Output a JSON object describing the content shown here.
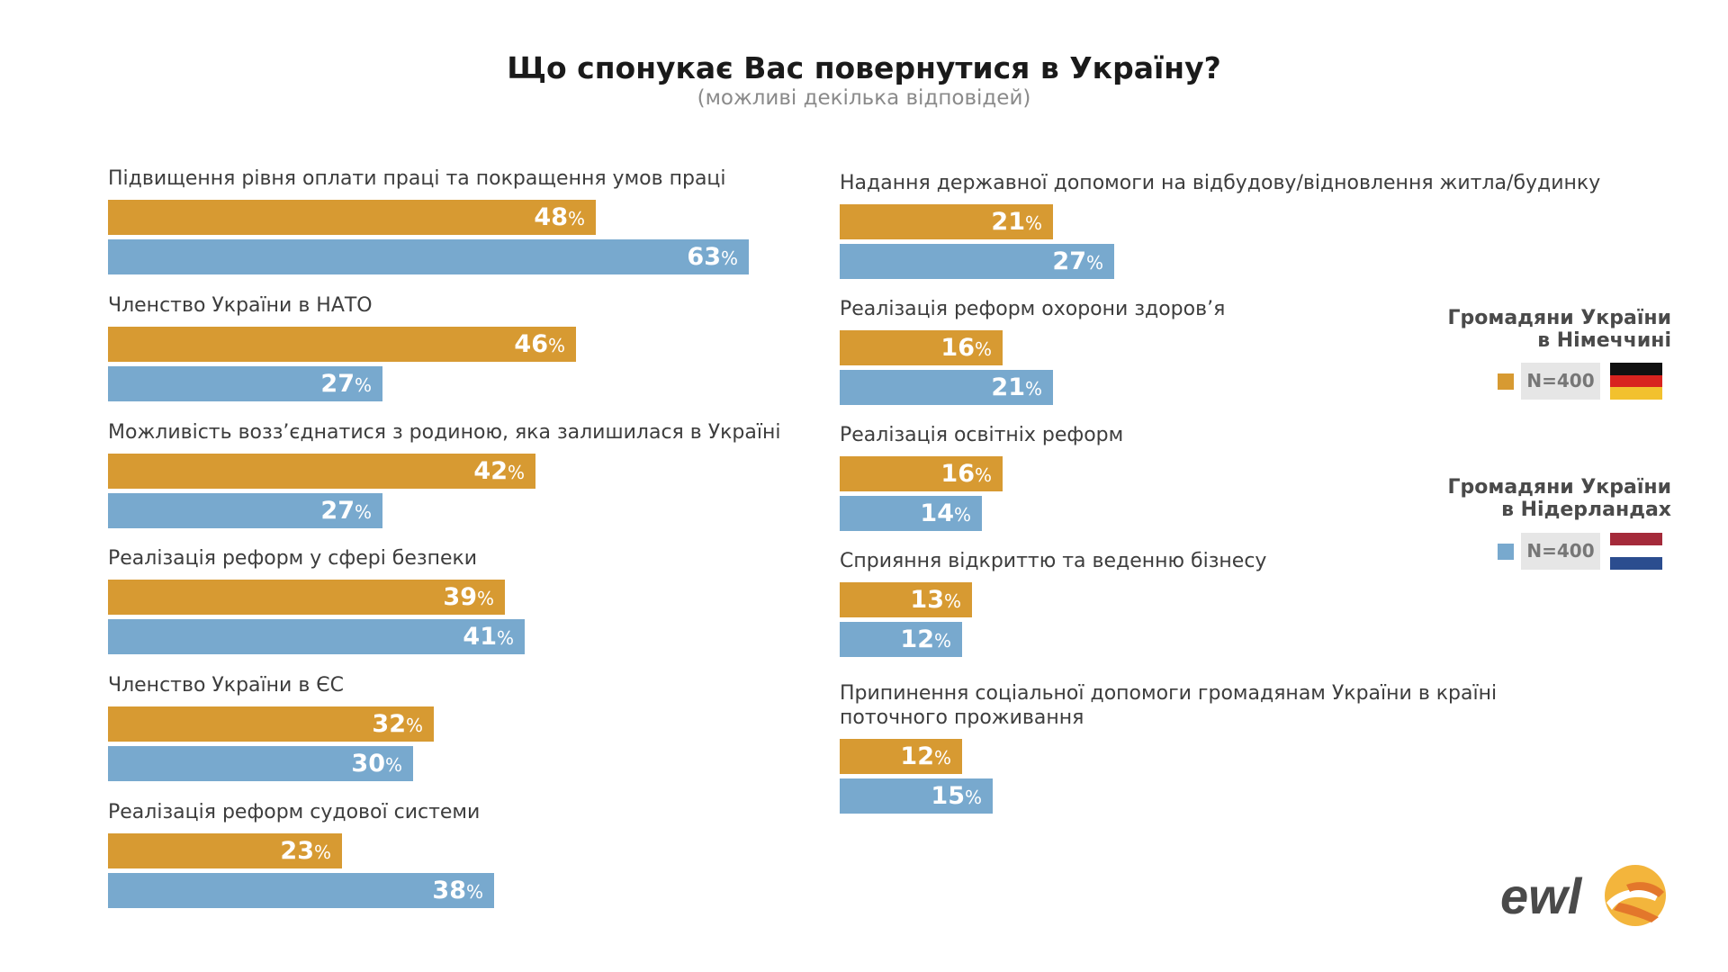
{
  "title": "Що спонукає Вас повернутися в Україну?",
  "subtitle": "(можливі декілька відповідей)",
  "colors": {
    "germany": "#d79a32",
    "netherlands": "#78a9ce"
  },
  "legend": [
    {
      "title_lines": [
        "Громадяни України",
        "в Німеччині"
      ],
      "n_label": "N=400",
      "flag": "germany-flag-icon",
      "color": "#d79a32"
    },
    {
      "title_lines": [
        "Громадяни України",
        "в Нідерландах"
      ],
      "n_label": "N=400",
      "flag": "netherlands-flag-icon",
      "color": "#78a9ce"
    }
  ],
  "logo_text": "ewl",
  "chart_data": {
    "type": "bar",
    "orientation": "horizontal",
    "unit": "%",
    "value_range": [
      0,
      100
    ],
    "series": [
      {
        "name": "Громадяни України в Німеччині",
        "color": "#d79a32"
      },
      {
        "name": "Громадяни України в Нідерландах",
        "color": "#78a9ce"
      }
    ],
    "columns": [
      [
        {
          "label": [
            "Підвищення рівня оплати праці та покращення умов праці"
          ],
          "values": [
            48,
            63
          ]
        },
        {
          "label": [
            "Членство України в НАТО"
          ],
          "values": [
            46,
            27
          ]
        },
        {
          "label": [
            "Можливість возз’єднатися з родиною, яка залишилася в Україні"
          ],
          "values": [
            42,
            27
          ]
        },
        {
          "label": [
            "Реалізація реформ у сфері безпеки"
          ],
          "values": [
            39,
            41
          ]
        },
        {
          "label": [
            "Членство України в ЄС"
          ],
          "values": [
            32,
            30
          ]
        },
        {
          "label": [
            "Реалізація реформ судової системи"
          ],
          "values": [
            23,
            38
          ]
        }
      ],
      [
        {
          "label": [
            "Надання державної допомоги на відбудову/відновлення житла/будинку"
          ],
          "values": [
            21,
            27
          ]
        },
        {
          "label": [
            "Реалізація реформ охорони здоров’я"
          ],
          "values": [
            16,
            21
          ]
        },
        {
          "label": [
            "Реалізація освітніх реформ"
          ],
          "values": [
            16,
            14
          ]
        },
        {
          "label": [
            "Сприяння відкриттю та веденню бізнесу"
          ],
          "values": [
            13,
            12
          ]
        },
        {
          "label": [
            "Припинення соціальної допомоги громадянам України в країні",
            "поточного проживання"
          ],
          "values": [
            12,
            15
          ]
        }
      ]
    ]
  }
}
